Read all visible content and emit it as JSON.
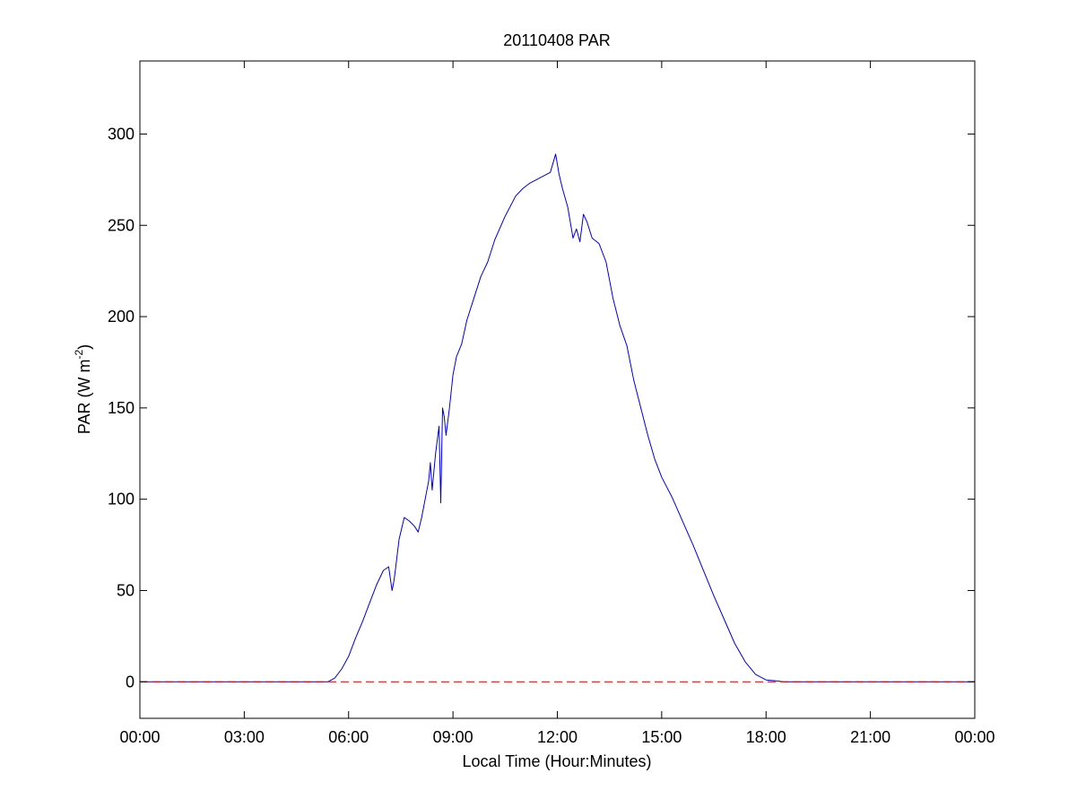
{
  "chart_data": {
    "type": "line",
    "title": "20110408 PAR",
    "xlabel": "Local Time (Hour:Minutes)",
    "ylabel_main": "PAR (W m",
    "ylabel_sup": "-2",
    "ylabel_close": ")",
    "xlim": [
      0,
      24
    ],
    "ylim": [
      -20,
      340
    ],
    "xticks": [
      0,
      3,
      6,
      9,
      12,
      15,
      18,
      21,
      24
    ],
    "xtick_labels": [
      "00:00",
      "03:00",
      "06:00",
      "09:00",
      "12:00",
      "15:00",
      "18:00",
      "21:00",
      "00:00"
    ],
    "yticks": [
      0,
      50,
      100,
      150,
      200,
      250,
      300
    ],
    "ytick_labels": [
      "0",
      "50",
      "100",
      "150",
      "200",
      "250",
      "300"
    ],
    "grid": false,
    "series": [
      {
        "color": "#0000cc",
        "style": "solid",
        "x": [
          0,
          5.4,
          5.6,
          5.8,
          6.0,
          6.2,
          6.4,
          6.6,
          6.8,
          7.0,
          7.15,
          7.25,
          7.3,
          7.35,
          7.45,
          7.6,
          7.75,
          7.9,
          8.0,
          8.1,
          8.2,
          8.3,
          8.35,
          8.4,
          8.5,
          8.6,
          8.65,
          8.7,
          8.75,
          8.8,
          8.9,
          9.0,
          9.1,
          9.25,
          9.4,
          9.6,
          9.8,
          10.0,
          10.2,
          10.5,
          10.8,
          11.0,
          11.2,
          11.5,
          11.8,
          11.95,
          12.05,
          12.15,
          12.3,
          12.45,
          12.55,
          12.65,
          12.75,
          12.85,
          13.0,
          13.2,
          13.4,
          13.6,
          13.8,
          14.0,
          14.2,
          14.4,
          14.6,
          14.8,
          15.0,
          15.3,
          15.6,
          15.9,
          16.2,
          16.5,
          16.8,
          17.1,
          17.4,
          17.7,
          18.0,
          18.3,
          18.5,
          18.7,
          24
        ],
        "y": [
          0,
          0,
          2,
          7,
          14,
          24,
          33,
          43,
          53,
          61,
          63,
          50,
          55,
          62,
          78,
          90,
          88,
          85,
          82,
          90,
          100,
          110,
          120,
          105,
          125,
          140,
          98,
          150,
          145,
          135,
          150,
          168,
          178,
          185,
          198,
          210,
          222,
          230,
          242,
          255,
          266,
          270,
          273,
          276,
          279,
          289,
          278,
          270,
          260,
          243,
          248,
          241,
          256,
          252,
          243,
          240,
          230,
          210,
          195,
          184,
          165,
          150,
          135,
          122,
          112,
          101,
          88,
          75,
          61,
          47,
          34,
          21,
          11,
          4,
          1,
          0.5,
          0,
          0,
          0
        ]
      },
      {
        "color": "#cc0000",
        "style": "dashed",
        "x": [
          0,
          24
        ],
        "y": [
          0,
          0
        ]
      }
    ]
  }
}
